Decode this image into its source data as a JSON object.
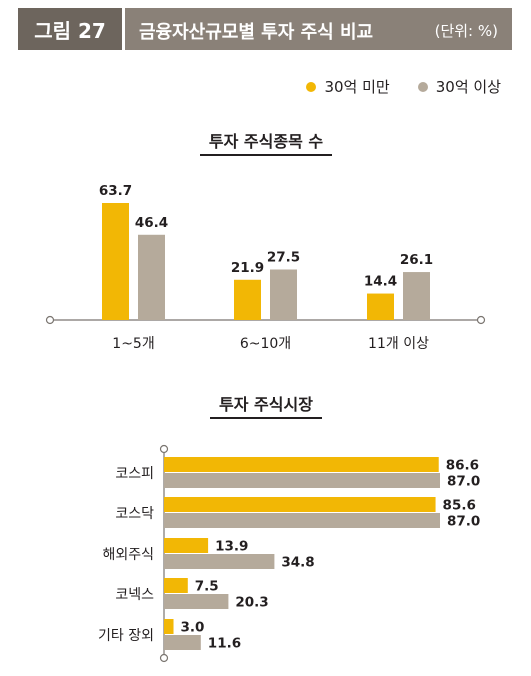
{
  "header": {
    "figure_label": "그림 27",
    "title": "금융자산규모별 투자 주식 비교",
    "unit": "(단위: %)"
  },
  "legend": [
    {
      "label": "30억 미만",
      "color": "#f2b705"
    },
    {
      "label": "30억 이상",
      "color": "#b5aa9b"
    }
  ],
  "chart_data": [
    {
      "type": "bar",
      "orientation": "vertical",
      "title": "투자 주식종목 수",
      "categories": [
        "1~5개",
        "6~10개",
        "11개 이상"
      ],
      "series": [
        {
          "name": "30억 미만",
          "values": [
            63.7,
            21.9,
            14.4
          ],
          "color": "#f2b705"
        },
        {
          "name": "30억 이상",
          "values": [
            46.4,
            27.5,
            26.1
          ],
          "color": "#b5aa9b"
        }
      ],
      "ylim": [
        0,
        70
      ]
    },
    {
      "type": "bar",
      "orientation": "horizontal",
      "title": "투자 주식시장",
      "categories": [
        "코스피",
        "코스닥",
        "해외주식",
        "코넥스",
        "기타 장외"
      ],
      "series": [
        {
          "name": "30억 미만",
          "values": [
            86.6,
            85.6,
            13.9,
            7.5,
            3.0
          ],
          "color": "#f2b705"
        },
        {
          "name": "30억 이상",
          "values": [
            87.0,
            87.0,
            34.8,
            20.3,
            11.6
          ],
          "color": "#b5aa9b"
        }
      ],
      "xlim": [
        0,
        100
      ]
    }
  ]
}
